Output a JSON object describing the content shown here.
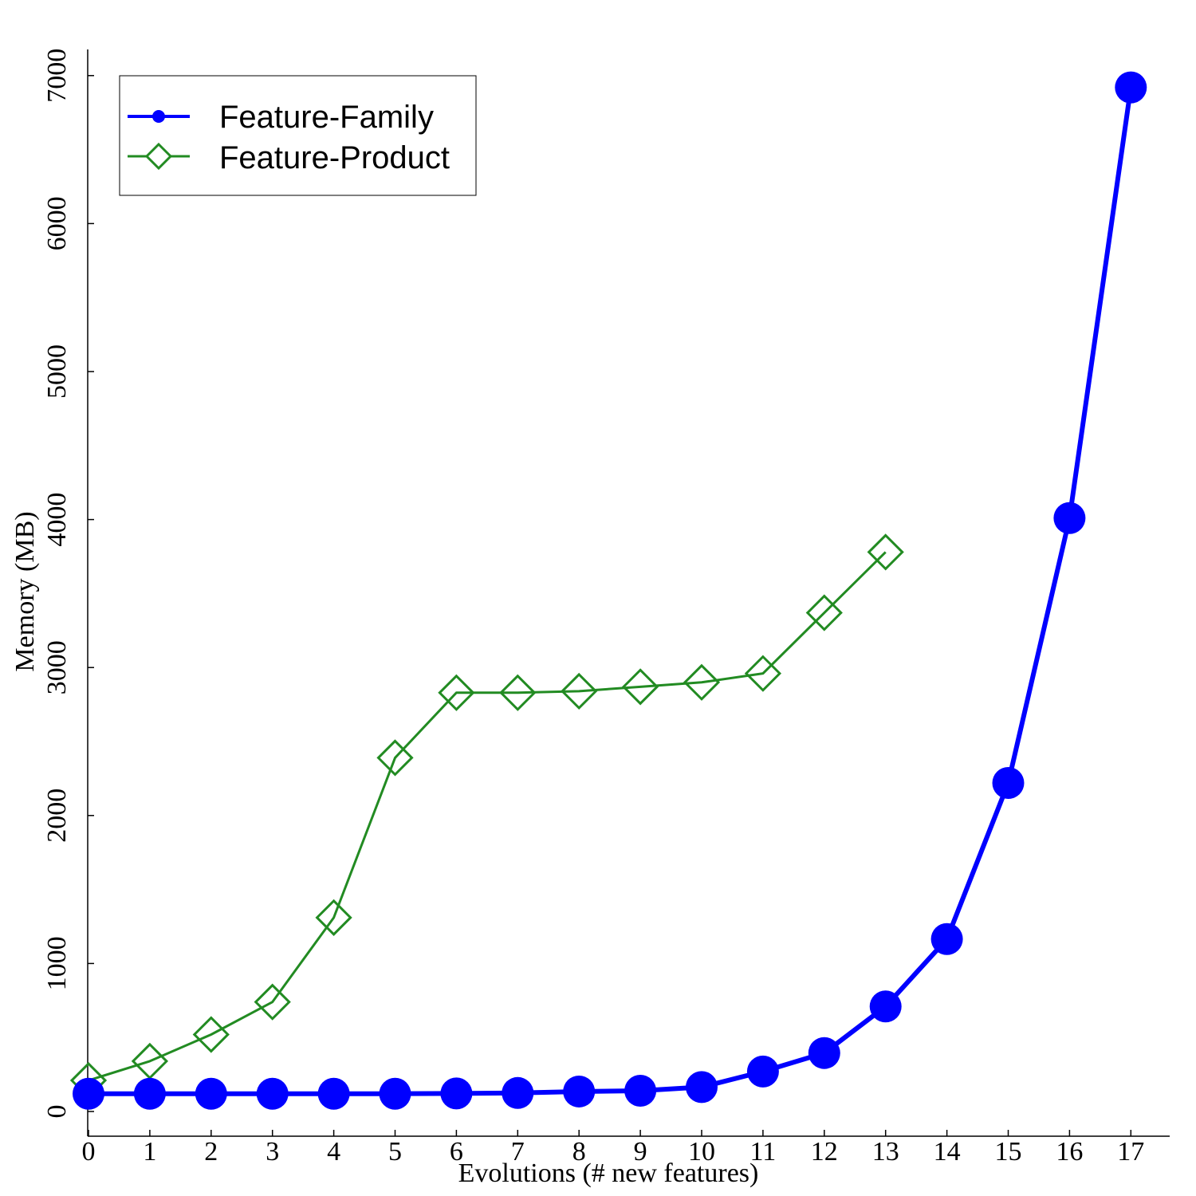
{
  "chart_data": {
    "type": "line",
    "title": "",
    "xlabel": "Evolutions (# new features)",
    "ylabel": "Memory (MB)",
    "x": [
      0,
      1,
      2,
      3,
      4,
      5,
      6,
      7,
      8,
      9,
      10,
      11,
      12,
      13,
      14,
      15,
      16,
      17
    ],
    "x_tick_labels": [
      "0",
      "1",
      "2",
      "3",
      "4",
      "5",
      "6",
      "7",
      "8",
      "9",
      "10",
      "11",
      "12",
      "13",
      "14",
      "15",
      "16",
      "17"
    ],
    "y_ticks": [
      0,
      1000,
      2000,
      3000,
      4000,
      5000,
      6000,
      7000
    ],
    "y_tick_labels": [
      "0",
      "1000",
      "2000",
      "3000",
      "4000",
      "5000",
      "6000",
      "7000"
    ],
    "xlim": [
      -0.1,
      17.7
    ],
    "ylim": [
      -150,
      7200
    ],
    "grid": false,
    "legend_position": "top-left",
    "series": [
      {
        "name": "Feature-Family",
        "color": "#0000ff",
        "marker": "circle",
        "x": [
          0,
          1,
          2,
          3,
          4,
          5,
          6,
          7,
          8,
          9,
          10,
          11,
          12,
          13,
          14,
          15,
          16,
          17
        ],
        "values": [
          120,
          120,
          120,
          120,
          120,
          120,
          122,
          125,
          135,
          140,
          165,
          270,
          395,
          710,
          1165,
          2220,
          4010,
          6920
        ]
      },
      {
        "name": "Feature-Product",
        "color": "#228b22",
        "marker": "diamond-open",
        "x": [
          0,
          1,
          2,
          3,
          4,
          5,
          6,
          7,
          8,
          9,
          10,
          11,
          12,
          13
        ],
        "values": [
          210,
          340,
          520,
          740,
          1310,
          2390,
          2830,
          2830,
          2840,
          2870,
          2900,
          2960,
          3370,
          3780
        ]
      }
    ]
  }
}
